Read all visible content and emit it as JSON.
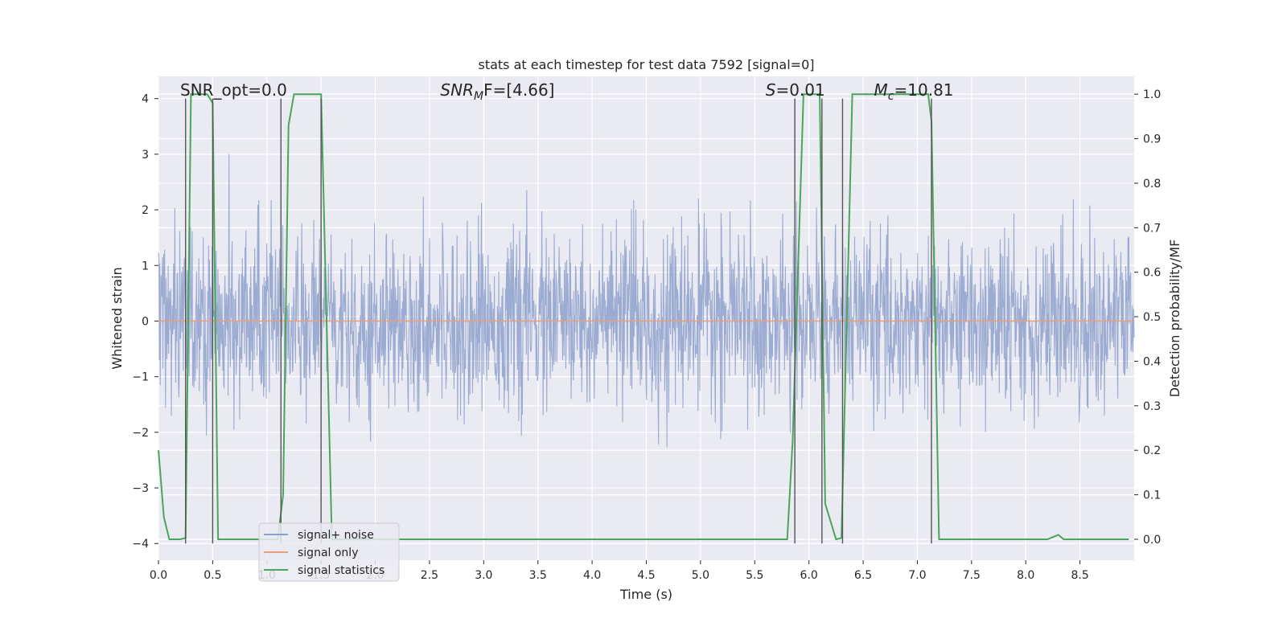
{
  "chart_data": {
    "type": "line",
    "title": "stats at each timestep for test data 7592 [signal=0]",
    "xlabel": "Time (s)",
    "ylabel": "Whitened strain",
    "y2label": "Detection probability/MF",
    "xlim": [
      0,
      9.0
    ],
    "ylim": [
      -4.3,
      4.4
    ],
    "y2lim": [
      -0.047,
      1.04
    ],
    "grid": true,
    "legend_position": "lower-left",
    "x_ticks": [
      "0.0",
      "0.5",
      "1.0",
      "1.5",
      "2.0",
      "2.5",
      "3.0",
      "3.5",
      "4.0",
      "4.5",
      "5.0",
      "5.5",
      "6.0",
      "6.5",
      "7.0",
      "7.5",
      "8.0",
      "8.5"
    ],
    "y_ticks": [
      "−4",
      "−3",
      "−2",
      "−1",
      "0",
      "1",
      "2",
      "3",
      "4"
    ],
    "y2_ticks": [
      "0.0",
      "0.1",
      "0.2",
      "0.3",
      "0.4",
      "0.5",
      "0.6",
      "0.7",
      "0.8",
      "0.9",
      "1.0"
    ],
    "annotations": [
      {
        "text": "SNR_opt=0.0",
        "x": 0.2,
        "y": 4.05
      },
      {
        "text": "SNR",
        "sub": "M",
        "suffix": "F=[4.66]",
        "italic": true,
        "x": 2.6,
        "y": 4.05
      },
      {
        "text": "S",
        "suffix": "=0.01",
        "italic": true,
        "x": 5.6,
        "y": 4.05
      },
      {
        "text": "M",
        "sub": "c",
        "suffix": "=10.81",
        "italic": true,
        "x": 6.6,
        "y": 4.05
      }
    ],
    "series": [
      {
        "name": "signal+ noise",
        "color": "#8da0cb",
        "kind": "noise",
        "sigma": 0.78,
        "n": 2200,
        "seed": 7592
      },
      {
        "name": "signal only",
        "color": "#e8a07a",
        "kind": "flat",
        "x": [
          0,
          9.0
        ],
        "y": [
          0,
          0
        ]
      },
      {
        "name": "signal statistics",
        "color": "#4aa55d",
        "axis": "y2",
        "x": [
          0.0,
          0.05,
          0.1,
          0.2,
          0.25,
          0.3,
          0.45,
          0.5,
          0.55,
          1.1,
          1.15,
          1.2,
          1.25,
          1.45,
          1.5,
          1.6,
          5.8,
          5.85,
          5.95,
          6.1,
          6.15,
          6.25,
          6.3,
          6.4,
          7.1,
          7.13,
          7.2,
          8.2,
          8.3,
          8.35,
          8.95
        ],
        "y": [
          0.2,
          0.05,
          0.0,
          0.0,
          0.003,
          1.0,
          1.0,
          0.98,
          0.0,
          0.0,
          0.1,
          0.93,
          1.0,
          1.0,
          1.0,
          0.0,
          0.0,
          0.22,
          1.0,
          1.0,
          0.08,
          0.0,
          0.003,
          1.0,
          1.0,
          0.94,
          0.0,
          0.0,
          0.01,
          0.0,
          0.0
        ]
      }
    ],
    "vlines": [
      0.25,
      0.5,
      1.13,
      1.5,
      5.87,
      6.12,
      6.31,
      7.13
    ]
  }
}
